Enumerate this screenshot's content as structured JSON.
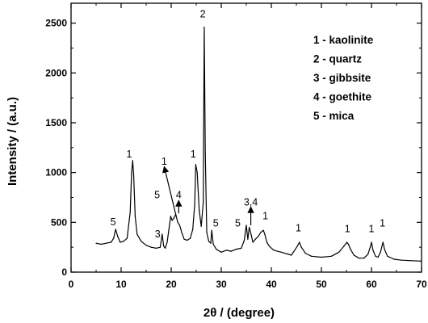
{
  "chart_data": {
    "type": "line",
    "xlabel": "2θ / (degree)",
    "ylabel": "Intensity / (a.u.)",
    "xlim": [
      0,
      70
    ],
    "ylim": [
      0,
      2700
    ],
    "x_ticks": [
      0,
      10,
      20,
      30,
      40,
      50,
      60,
      70
    ],
    "y_ticks": [
      0,
      500,
      1000,
      1500,
      2000,
      2500
    ],
    "x_tick_labels": [
      "0",
      "10",
      "20",
      "30",
      "40",
      "50",
      "60",
      "70"
    ],
    "y_tick_labels": [
      "0",
      "500",
      "1000",
      "1500",
      "2000",
      "2500"
    ],
    "series": [
      {
        "color": "#000000",
        "x": [
          5,
          6,
          7,
          8,
          8.5,
          8.9,
          9.3,
          9.8,
          10.5,
          11.2,
          11.8,
          12.1,
          12.3,
          12.5,
          12.8,
          13.2,
          14,
          15,
          16,
          17,
          17.8,
          18.2,
          18.5,
          18.8,
          19.2,
          19.6,
          19.9,
          20.2,
          20.5,
          20.9,
          21.3,
          21.7,
          22.1,
          22.6,
          23.2,
          23.8,
          24.3,
          24.7,
          24.9,
          25.2,
          25.6,
          26.0,
          26.4,
          26.6,
          26.8,
          27.1,
          27.5,
          27.9,
          28.1,
          28.4,
          29,
          30,
          31,
          32,
          33,
          34,
          34.6,
          35.0,
          35.3,
          35.6,
          36.0,
          36.3,
          36.8,
          37.4,
          37.9,
          38.4,
          38.7,
          39.1,
          39.6,
          40.5,
          42,
          44,
          45.2,
          45.6,
          46.0,
          46.8,
          48,
          50,
          52,
          53.5,
          54.5,
          55.1,
          55.4,
          55.8,
          56.5,
          57.5,
          58.5,
          59.3,
          59.8,
          60.0,
          60.3,
          60.8,
          61.3,
          61.8,
          62.1,
          62.3,
          62.6,
          63.2,
          64.5,
          66,
          68,
          70
        ],
        "y": [
          290,
          280,
          290,
          300,
          340,
          430,
          360,
          300,
          310,
          340,
          600,
          1000,
          1120,
          980,
          560,
          380,
          310,
          270,
          250,
          240,
          250,
          380,
          260,
          240,
          300,
          450,
          560,
          520,
          540,
          580,
          500,
          470,
          400,
          330,
          320,
          340,
          430,
          680,
          1080,
          1000,
          620,
          460,
          700,
          2460,
          1200,
          400,
          310,
          290,
          420,
          280,
          230,
          200,
          220,
          210,
          230,
          240,
          320,
          470,
          330,
          450,
          370,
          300,
          330,
          360,
          400,
          420,
          380,
          300,
          260,
          220,
          200,
          170,
          260,
          300,
          250,
          190,
          160,
          150,
          160,
          200,
          260,
          300,
          280,
          230,
          170,
          140,
          140,
          180,
          260,
          300,
          220,
          160,
          150,
          200,
          260,
          300,
          230,
          160,
          130,
          120,
          115,
          110
        ]
      }
    ],
    "annotations": [
      {
        "text": "5",
        "x": 8.4,
        "y": 470
      },
      {
        "text": "1",
        "x": 11.6,
        "y": 1150
      },
      {
        "text": "3",
        "x": 17.3,
        "y": 350
      },
      {
        "text": "5",
        "x": 17.2,
        "y": 740
      },
      {
        "text": "1",
        "x": 18.6,
        "y": 1080
      },
      {
        "text": "4",
        "x": 21.5,
        "y": 740
      },
      {
        "text": "1",
        "x": 24.4,
        "y": 1150
      },
      {
        "text": "2",
        "x": 26.3,
        "y": 2560
      },
      {
        "text": "5",
        "x": 28.9,
        "y": 460
      },
      {
        "text": "5",
        "x": 33.3,
        "y": 460
      },
      {
        "text": "3,4",
        "x": 35.9,
        "y": 670
      },
      {
        "text": "1",
        "x": 38.8,
        "y": 530
      },
      {
        "text": "1",
        "x": 45.4,
        "y": 410
      },
      {
        "text": "1",
        "x": 55.2,
        "y": 400
      },
      {
        "text": "1",
        "x": 60.0,
        "y": 400
      },
      {
        "text": "1",
        "x": 62.2,
        "y": 460
      }
    ],
    "arrows": [
      {
        "from": [
          21.0,
          560
        ],
        "to": [
          18.6,
          1060
        ]
      },
      {
        "from": [
          21.5,
          590
        ],
        "to": [
          21.5,
          720
        ]
      },
      {
        "from": [
          35.9,
          470
        ],
        "to": [
          35.9,
          655
        ]
      }
    ],
    "legend": {
      "placement": "top-right",
      "entries": [
        "1 - kaolinite",
        "2 - quartz",
        "3 - gibbsite",
        "4 - goethite",
        "5 - mica"
      ]
    }
  }
}
